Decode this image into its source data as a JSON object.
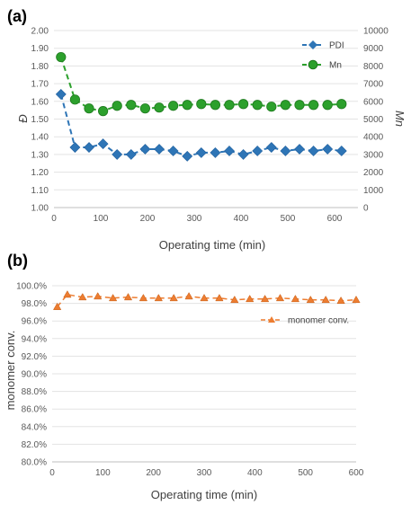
{
  "chart_data": [
    {
      "panel_label": "(a)",
      "type": "line",
      "xlabel": "Operating time (min)",
      "ylabel": "Đ",
      "y2label": "Mn",
      "xlim": [
        0,
        650
      ],
      "xticks": [
        "0",
        "100",
        "200",
        "300",
        "400",
        "500",
        "600"
      ],
      "ylim": [
        1.0,
        2.0
      ],
      "yticks": [
        "1.00",
        "1.10",
        "1.20",
        "1.30",
        "1.40",
        "1.50",
        "1.60",
        "1.70",
        "1.80",
        "1.90",
        "2.00"
      ],
      "y2lim": [
        0,
        10000
      ],
      "y2ticks": [
        "0",
        "1000",
        "2000",
        "3000",
        "4000",
        "5000",
        "6000",
        "7000",
        "8000",
        "9000",
        "10000"
      ],
      "legend_position": "top-right",
      "series": [
        {
          "name": "PDI",
          "axis": "left",
          "marker": "diamond",
          "color": "#2E75B6",
          "x": [
            15,
            45,
            75,
            105,
            135,
            165,
            195,
            225,
            255,
            285,
            315,
            345,
            375,
            405,
            435,
            465,
            495,
            525,
            555,
            585,
            615
          ],
          "values": [
            1.64,
            1.34,
            1.34,
            1.36,
            1.3,
            1.3,
            1.33,
            1.33,
            1.32,
            1.29,
            1.31,
            1.31,
            1.32,
            1.3,
            1.32,
            1.34,
            1.32,
            1.33,
            1.32,
            1.33,
            1.32
          ]
        },
        {
          "name": "Mn",
          "axis": "right",
          "marker": "circle",
          "color": "#2CA02C",
          "x": [
            15,
            45,
            75,
            105,
            135,
            165,
            195,
            225,
            255,
            285,
            315,
            345,
            375,
            405,
            435,
            465,
            495,
            525,
            555,
            585,
            615
          ],
          "values": [
            8500,
            6100,
            5600,
            5450,
            5750,
            5800,
            5600,
            5650,
            5750,
            5800,
            5850,
            5800,
            5800,
            5850,
            5800,
            5700,
            5800,
            5800,
            5800,
            5800,
            5850
          ]
        }
      ]
    },
    {
      "panel_label": "(b)",
      "type": "line",
      "xlabel": "Operating time (min)",
      "ylabel": "monomer conv.",
      "xlim": [
        0,
        600
      ],
      "xticks": [
        "0",
        "100",
        "200",
        "300",
        "400",
        "500",
        "600"
      ],
      "ylim": [
        80,
        100
      ],
      "yticks": [
        "80.0%",
        "82.0%",
        "84.0%",
        "86.0%",
        "88.0%",
        "90.0%",
        "92.0%",
        "94.0%",
        "96.0%",
        "98.0%",
        "100.0%"
      ],
      "legend_position": "right",
      "series": [
        {
          "name": "monomer conv.",
          "marker": "triangle",
          "color": "#ED7D31",
          "x": [
            10,
            30,
            60,
            90,
            120,
            150,
            180,
            210,
            240,
            270,
            300,
            330,
            360,
            390,
            420,
            450,
            480,
            510,
            540,
            570,
            600
          ],
          "values": [
            97.6,
            99.0,
            98.7,
            98.8,
            98.6,
            98.7,
            98.6,
            98.6,
            98.6,
            98.8,
            98.6,
            98.6,
            98.4,
            98.5,
            98.5,
            98.6,
            98.5,
            98.4,
            98.4,
            98.3,
            98.4
          ]
        }
      ]
    }
  ]
}
